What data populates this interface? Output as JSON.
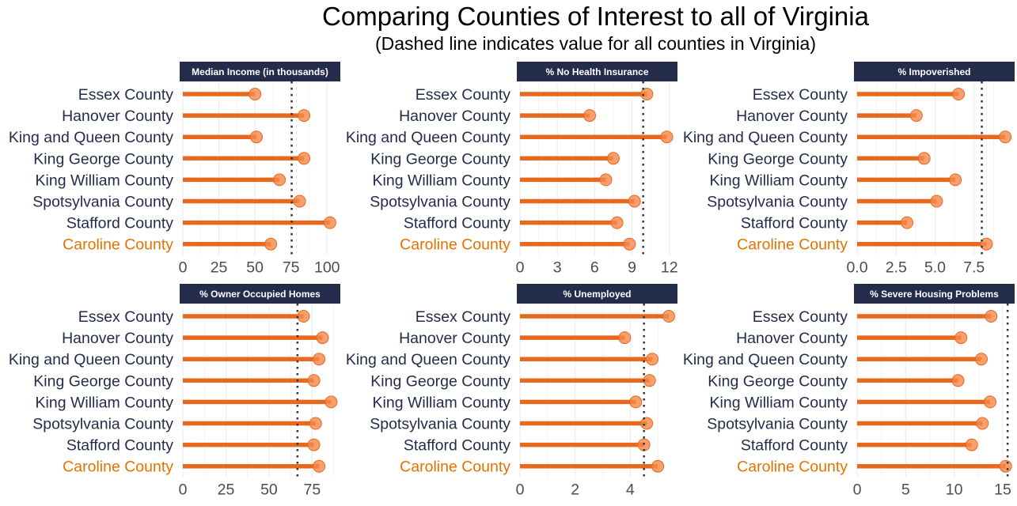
{
  "title": "Comparing Counties of Interest to all of Virginia",
  "subtitle": "(Dashed line indicates value for all counties in Virginia)",
  "colors": {
    "bar": "#e8681e",
    "point": "#f5884a",
    "label": "#232d4b",
    "highlight_label": "#e57200",
    "strip_bg": "#232d4b",
    "strip_text": "#ffffff",
    "grid": "#ebebeb",
    "reference": "#333333",
    "tick": "#4d4d4d"
  },
  "chart_data": [
    {
      "type": "bar",
      "title": "Median Income (in thousands)",
      "categories": [
        "Essex County",
        "Hanover County",
        "King and Queen County",
        "King George County",
        "King William County",
        "Spotsylvania County",
        "Stafford County",
        "Caroline County"
      ],
      "values": [
        50,
        84,
        51,
        84,
        67,
        81,
        102,
        61
      ],
      "highlight": "Caroline County",
      "reference": 75.5,
      "xlim": [
        0,
        107
      ],
      "ticks": [
        0,
        25,
        50,
        75,
        100
      ]
    },
    {
      "type": "bar",
      "title": "% No Health Insurance",
      "categories": [
        "Essex County",
        "Hanover County",
        "King and Queen County",
        "King George County",
        "King William County",
        "Spotsylvania County",
        "Stafford County",
        "Caroline County"
      ],
      "values": [
        10.2,
        5.6,
        11.8,
        7.5,
        6.9,
        9.2,
        7.8,
        8.8
      ],
      "highlight": "Caroline County",
      "reference": 9.9,
      "xlim": [
        0,
        12.4
      ],
      "ticks": [
        0,
        3,
        6,
        9,
        12
      ]
    },
    {
      "type": "bar",
      "title": "% Impoverished",
      "categories": [
        "Essex County",
        "Hanover County",
        "King and Queen County",
        "King George County",
        "King William County",
        "Spotsylvania County",
        "Stafford County",
        "Caroline County"
      ],
      "values": [
        6.5,
        3.8,
        9.5,
        4.3,
        6.3,
        5.1,
        3.2,
        8.3
      ],
      "highlight": "Caroline County",
      "reference": 8.0,
      "xlim": [
        0,
        9.9
      ],
      "ticks": [
        0,
        2.5,
        5,
        7.5
      ],
      "tick_labels": [
        "0.0",
        "2.5",
        "5.0",
        "7.5"
      ]
    },
    {
      "type": "bar",
      "title": "% Owner Occupied Homes",
      "categories": [
        "Essex County",
        "Hanover County",
        "King and Queen County",
        "King George County",
        "King William County",
        "Spotsylvania County",
        "Stafford County",
        "Caroline County"
      ],
      "values": [
        70,
        81,
        79,
        76,
        86,
        77,
        76,
        79
      ],
      "highlight": "Caroline County",
      "reference": 66.5,
      "xlim": [
        0,
        89.5
      ],
      "ticks": [
        0,
        25,
        50,
        75
      ]
    },
    {
      "type": "bar",
      "title": "% Unemployed",
      "categories": [
        "Essex County",
        "Hanover County",
        "King and Queen County",
        "King George County",
        "King William County",
        "Spotsylvania County",
        "Stafford County",
        "Caroline County"
      ],
      "values": [
        5.4,
        3.8,
        4.8,
        4.7,
        4.2,
        4.6,
        4.5,
        5.0
      ],
      "highlight": "Caroline County",
      "reference": 4.5,
      "xlim": [
        0,
        5.6
      ],
      "ticks": [
        0,
        2,
        4
      ]
    },
    {
      "type": "bar",
      "title": "% Severe Housing Problems",
      "categories": [
        "Essex County",
        "Hanover County",
        "King and Queen County",
        "King George County",
        "King William County",
        "Spotsylvania County",
        "Stafford County",
        "Caroline County"
      ],
      "values": [
        13.8,
        10.7,
        12.8,
        10.4,
        13.7,
        12.9,
        11.8,
        15.3
      ],
      "highlight": "Caroline County",
      "reference": 15.5,
      "xlim": [
        0,
        15.9
      ],
      "ticks": [
        0,
        5,
        10,
        15
      ]
    }
  ]
}
